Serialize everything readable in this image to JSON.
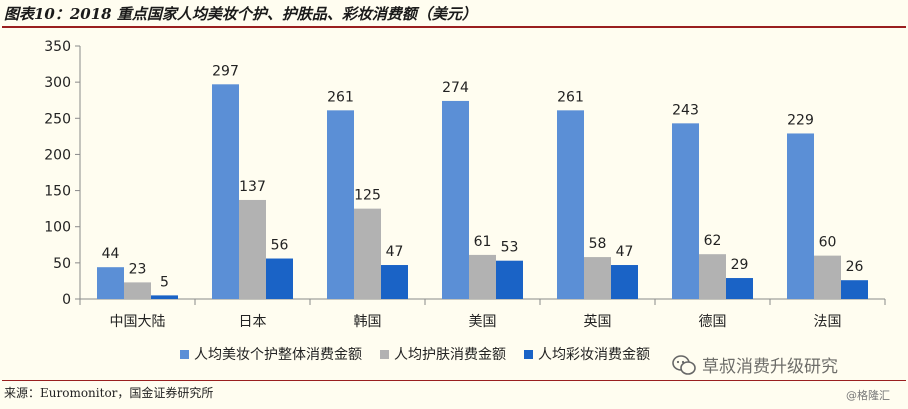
{
  "title": "图表10：2018 重点国家人均美妆个护、护肤品、彩妆消费额（美元）",
  "source": "来源：Euromonitor，国金证券研究所",
  "watermark": "草叔消费升级研究",
  "credit": "@格隆汇",
  "chart_data": {
    "type": "bar",
    "categories": [
      "中国大陆",
      "日本",
      "韩国",
      "美国",
      "英国",
      "德国",
      "法国"
    ],
    "series": [
      {
        "name": "人均美妆个护整体消费金额",
        "color": "#5b8fd6",
        "values": [
          44,
          297,
          261,
          274,
          261,
          243,
          229
        ]
      },
      {
        "name": "人均护肤消费金额",
        "color": "#b2b2b2",
        "values": [
          23,
          137,
          125,
          61,
          58,
          62,
          60
        ]
      },
      {
        "name": "人均彩妆消费金额",
        "color": "#1a63c6",
        "values": [
          5,
          56,
          47,
          53,
          47,
          29,
          26
        ]
      }
    ],
    "ylim": [
      0,
      350
    ],
    "yticks": [
      0,
      50,
      100,
      150,
      200,
      250,
      300,
      350
    ],
    "grid": false,
    "legend_position": "bottom",
    "data_labels": true
  }
}
